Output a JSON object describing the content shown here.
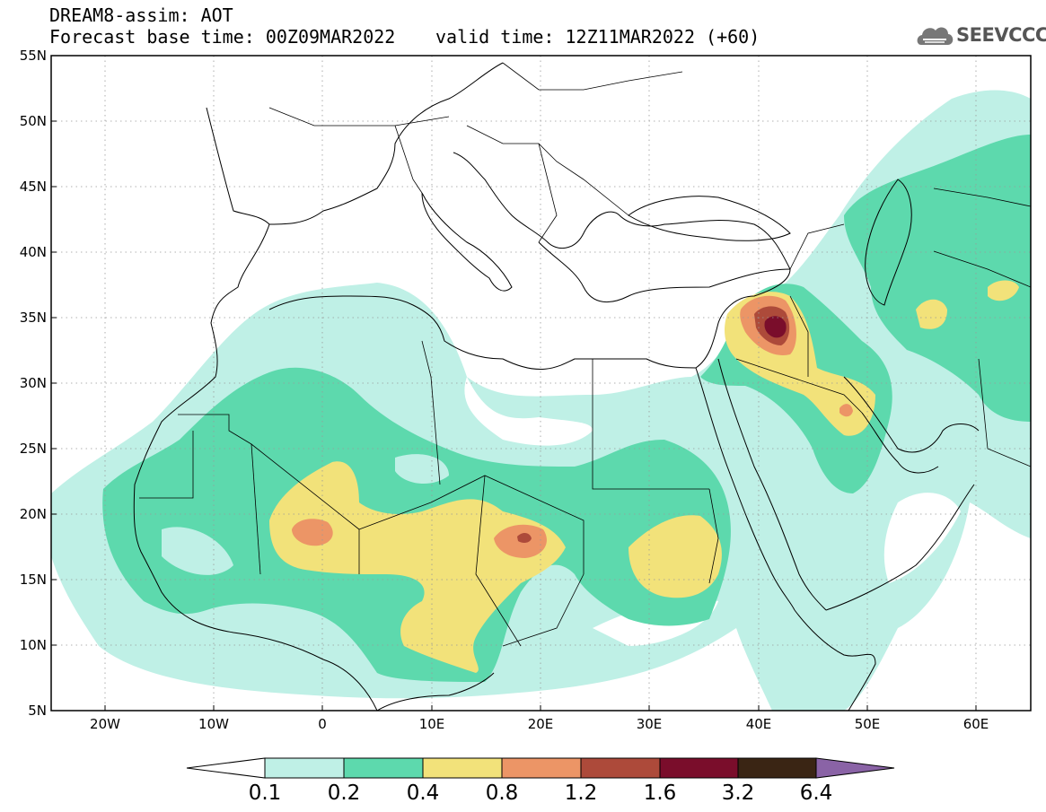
{
  "title": {
    "line1": "DREAM8-assim: AOT",
    "line2": "Forecast base time: 00Z09MAR2022",
    "valid": "valid time: 12Z11MAR2022 (+60)"
  },
  "logo": {
    "text": "SEEVCCC",
    "icon": "cloud-logo-icon"
  },
  "map": {
    "lon_range": [
      -25,
      65
    ],
    "lat_range": [
      5,
      55
    ],
    "lat_ticks": [
      "55N",
      "50N",
      "45N",
      "40N",
      "35N",
      "30N",
      "25N",
      "20N",
      "15N",
      "10N",
      "5N"
    ],
    "lon_ticks": [
      "20W",
      "10W",
      "0",
      "10E",
      "20E",
      "30E",
      "40E",
      "50E",
      "60E"
    ],
    "gridlines": "dotted"
  },
  "colorbar": {
    "labels": [
      "0.1",
      "0.2",
      "0.4",
      "0.8",
      "1.2",
      "1.6",
      "3.2",
      "6.4"
    ],
    "colors": [
      "#ffffff",
      "#bff0e6",
      "#5dd9ad",
      "#f2e27a",
      "#ec9566",
      "#ad4a3a",
      "#7a0d2b",
      "#3a2514",
      "#8a63a6"
    ]
  },
  "colors": {
    "c1": "#bff0e6",
    "c2": "#5dd9ad",
    "c3": "#f2e27a",
    "c4": "#ec9566",
    "c5": "#ad4a3a",
    "c6": "#7a0d2b"
  }
}
